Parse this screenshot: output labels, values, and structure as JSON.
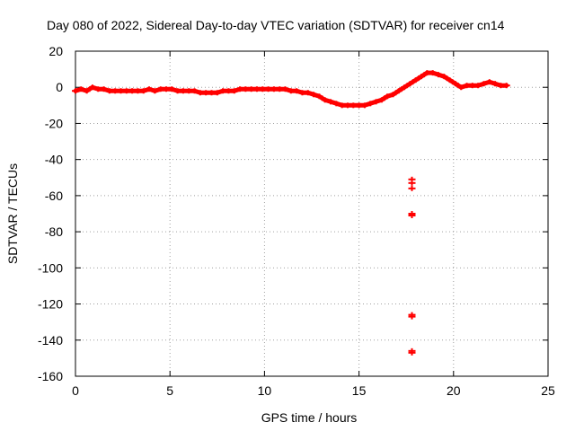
{
  "chart_data": {
    "type": "scatter",
    "title": "Day 080 of 2022, Sidereal Day-to-day VTEC variation (SDTVAR) for receiver cn14",
    "xlabel": "GPS time / hours",
    "ylabel": "SDTVAR / TECUs",
    "xlim": [
      0,
      25
    ],
    "ylim": [
      -160,
      20
    ],
    "xticks": [
      0,
      5,
      10,
      15,
      20,
      25
    ],
    "yticks": [
      20,
      0,
      -20,
      -40,
      -60,
      -80,
      -100,
      -120,
      -140,
      -160
    ],
    "grid": true,
    "marker": "plus",
    "series": [
      {
        "name": "SDTVAR",
        "color": "#ff0000",
        "points": [
          [
            0.0,
            -2
          ],
          [
            0.3,
            -1
          ],
          [
            0.6,
            -2
          ],
          [
            0.9,
            0
          ],
          [
            1.2,
            -1
          ],
          [
            1.5,
            -1
          ],
          [
            1.8,
            -2
          ],
          [
            2.1,
            -2
          ],
          [
            2.4,
            -2
          ],
          [
            2.7,
            -2
          ],
          [
            3.0,
            -2
          ],
          [
            3.3,
            -2
          ],
          [
            3.6,
            -2
          ],
          [
            3.9,
            -1
          ],
          [
            4.2,
            -2
          ],
          [
            4.5,
            -1
          ],
          [
            4.8,
            -1
          ],
          [
            5.1,
            -1
          ],
          [
            5.4,
            -2
          ],
          [
            5.7,
            -2
          ],
          [
            6.0,
            -2
          ],
          [
            6.3,
            -2
          ],
          [
            6.6,
            -3
          ],
          [
            6.9,
            -3
          ],
          [
            7.2,
            -3
          ],
          [
            7.5,
            -3
          ],
          [
            7.8,
            -2
          ],
          [
            8.1,
            -2
          ],
          [
            8.4,
            -2
          ],
          [
            8.7,
            -1
          ],
          [
            9.0,
            -1
          ],
          [
            9.3,
            -1
          ],
          [
            9.6,
            -1
          ],
          [
            9.9,
            -1
          ],
          [
            10.2,
            -1
          ],
          [
            10.5,
            -1
          ],
          [
            10.8,
            -1
          ],
          [
            11.1,
            -1
          ],
          [
            11.4,
            -2
          ],
          [
            11.7,
            -2
          ],
          [
            12.0,
            -3
          ],
          [
            12.3,
            -3
          ],
          [
            12.6,
            -4
          ],
          [
            12.9,
            -5
          ],
          [
            13.2,
            -7
          ],
          [
            13.5,
            -8
          ],
          [
            13.8,
            -9
          ],
          [
            14.1,
            -10
          ],
          [
            14.4,
            -10
          ],
          [
            14.7,
            -10
          ],
          [
            15.0,
            -10
          ],
          [
            15.3,
            -10
          ],
          [
            15.6,
            -9
          ],
          [
            15.9,
            -8
          ],
          [
            16.2,
            -7
          ],
          [
            16.5,
            -5
          ],
          [
            16.8,
            -4
          ],
          [
            17.1,
            -2
          ],
          [
            17.4,
            0
          ],
          [
            17.7,
            2
          ],
          [
            18.0,
            4
          ],
          [
            18.3,
            6
          ],
          [
            18.6,
            8
          ],
          [
            18.9,
            8
          ],
          [
            19.2,
            7
          ],
          [
            19.5,
            6
          ],
          [
            19.8,
            4
          ],
          [
            20.1,
            2
          ],
          [
            20.4,
            0
          ],
          [
            20.7,
            1
          ],
          [
            21.0,
            1
          ],
          [
            21.3,
            1
          ],
          [
            21.6,
            2
          ],
          [
            21.9,
            3
          ],
          [
            22.2,
            2
          ],
          [
            22.5,
            1
          ],
          [
            22.8,
            1
          ],
          [
            17.8,
            -51
          ],
          [
            17.8,
            -53
          ],
          [
            17.8,
            -56
          ],
          [
            17.8,
            -70
          ],
          [
            17.8,
            -71
          ],
          [
            17.8,
            -126
          ],
          [
            17.8,
            -127
          ],
          [
            17.8,
            -146
          ],
          [
            17.8,
            -147
          ]
        ]
      }
    ]
  }
}
